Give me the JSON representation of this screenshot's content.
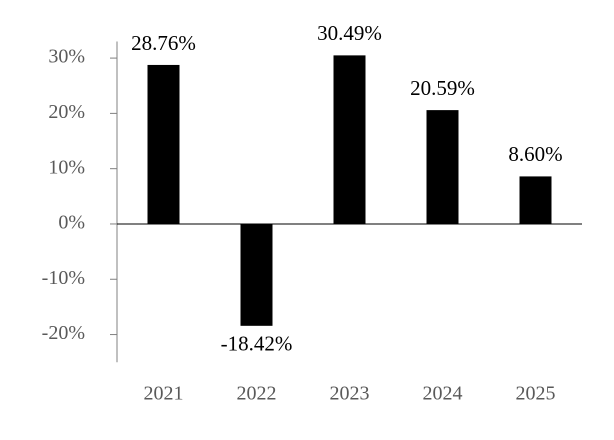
{
  "chart_data": {
    "type": "bar",
    "categories": [
      "2021",
      "2022",
      "2023",
      "2024",
      "2025"
    ],
    "values": [
      28.76,
      -18.42,
      30.49,
      20.59,
      8.6
    ],
    "value_labels": [
      "28.76%",
      "-18.42%",
      "30.49%",
      "20.59%",
      "8.60%"
    ],
    "color": "#000000",
    "ylim": [
      -25,
      33
    ],
    "yticks": [
      {
        "value": -20,
        "label": "-20%"
      },
      {
        "value": -10,
        "label": "-10%"
      },
      {
        "value": 0,
        "label": "0%"
      },
      {
        "value": 10,
        "label": "10%"
      },
      {
        "value": 20,
        "label": "20%"
      },
      {
        "value": 30,
        "label": "30%"
      }
    ]
  }
}
